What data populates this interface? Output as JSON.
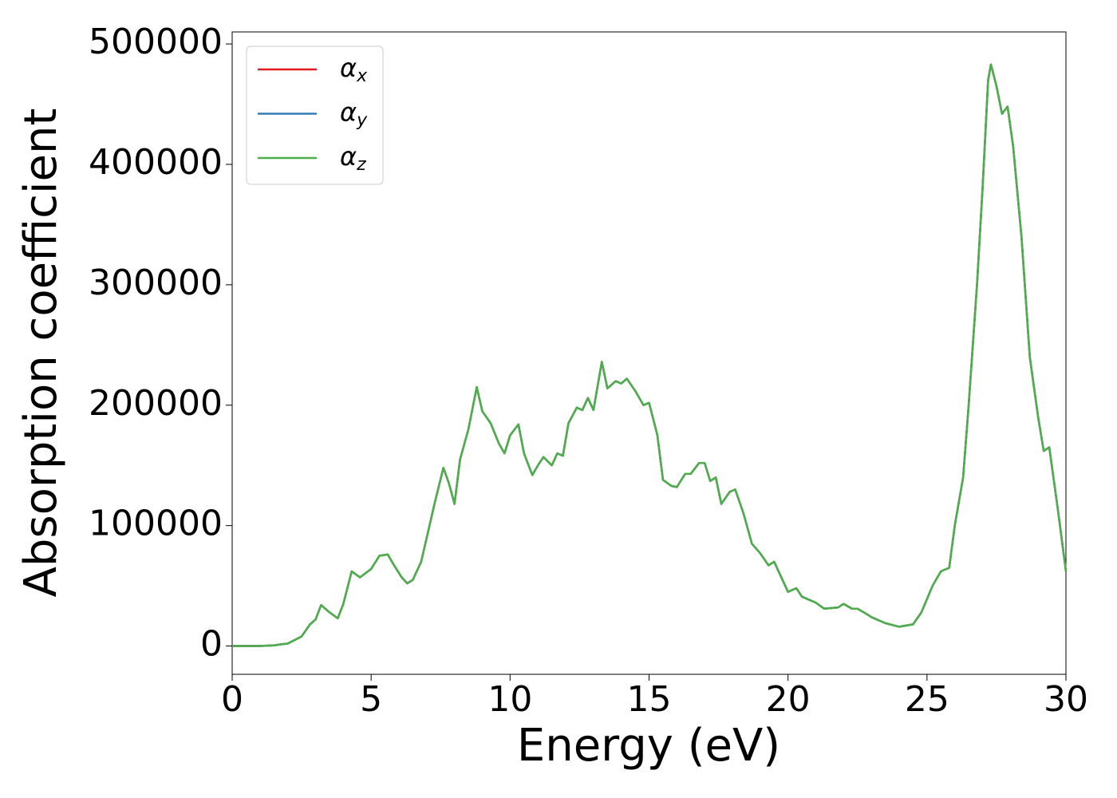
{
  "chart_data": {
    "type": "line",
    "x_label": "Energy (eV)",
    "y_label": "Absorption coefficient",
    "x": [
      0,
      1,
      1.5,
      1.8,
      2.0,
      2.5,
      2.8,
      3.0,
      3.2,
      3.5,
      3.8,
      4.0,
      4.3,
      4.6,
      5.0,
      5.3,
      5.6,
      5.8,
      6.1,
      6.3,
      6.5,
      6.8,
      7.0,
      7.3,
      7.6,
      7.8,
      8.0,
      8.2,
      8.5,
      8.8,
      9.0,
      9.3,
      9.6,
      9.8,
      10.0,
      10.3,
      10.5,
      10.8,
      11.0,
      11.2,
      11.5,
      11.7,
      11.9,
      12.1,
      12.4,
      12.6,
      12.8,
      13.0,
      13.3,
      13.5,
      13.8,
      14.0,
      14.2,
      14.5,
      14.8,
      15.0,
      15.3,
      15.5,
      15.8,
      16.0,
      16.3,
      16.5,
      16.8,
      17.0,
      17.2,
      17.4,
      17.6,
      17.9,
      18.1,
      18.4,
      18.7,
      19.0,
      19.3,
      19.5,
      19.8,
      20.0,
      20.3,
      20.5,
      21.0,
      21.3,
      21.8,
      22.0,
      22.3,
      22.5,
      22.8,
      23.0,
      23.5,
      24.0,
      24.5,
      24.8,
      25.2,
      25.5,
      25.8,
      26.0,
      26.3,
      26.5,
      26.8,
      27.0,
      27.2,
      27.3,
      27.5,
      27.7,
      27.9,
      28.1,
      28.4,
      28.7,
      29.0,
      29.2,
      29.4,
      29.7,
      30.0
    ],
    "series": [
      {
        "name": "αx",
        "color": "#e41a1c",
        "values": [
          0,
          0,
          500,
          1500,
          2000,
          8000,
          18000,
          22000,
          34000,
          28000,
          23000,
          35000,
          62000,
          57000,
          64000,
          75000,
          76000,
          68000,
          57000,
          52000,
          55000,
          70000,
          90000,
          120000,
          148000,
          135000,
          118000,
          155000,
          180000,
          215000,
          195000,
          185000,
          168000,
          160000,
          175000,
          184000,
          160000,
          142000,
          150000,
          157000,
          150000,
          160000,
          158000,
          185000,
          198000,
          196000,
          206000,
          196000,
          236000,
          214000,
          220000,
          218000,
          222000,
          212000,
          200000,
          202000,
          175000,
          138000,
          133000,
          132000,
          143000,
          143000,
          152000,
          152000,
          137000,
          140000,
          118000,
          128000,
          130000,
          110000,
          85000,
          77000,
          67000,
          70000,
          55000,
          45000,
          48000,
          41000,
          36000,
          31000,
          32000,
          35000,
          31000,
          31000,
          27000,
          24000,
          19000,
          16000,
          18000,
          28000,
          50000,
          62000,
          65000,
          100000,
          140000,
          200000,
          300000,
          380000,
          470000,
          483000,
          465000,
          442000,
          448000,
          415000,
          340000,
          240000,
          190000,
          162000,
          165000,
          115000,
          62000
        ]
      },
      {
        "name": "αy",
        "color": "#377eb8",
        "values": [
          0,
          0,
          500,
          1500,
          2000,
          8000,
          18000,
          22000,
          34000,
          28000,
          23000,
          35000,
          62000,
          57000,
          64000,
          75000,
          76000,
          68000,
          57000,
          52000,
          55000,
          70000,
          90000,
          120000,
          148000,
          135000,
          118000,
          155000,
          180000,
          215000,
          195000,
          185000,
          168000,
          160000,
          175000,
          184000,
          160000,
          142000,
          150000,
          157000,
          150000,
          160000,
          158000,
          185000,
          198000,
          196000,
          206000,
          196000,
          236000,
          214000,
          220000,
          218000,
          222000,
          212000,
          200000,
          202000,
          175000,
          138000,
          133000,
          132000,
          143000,
          143000,
          152000,
          152000,
          137000,
          140000,
          118000,
          128000,
          130000,
          110000,
          85000,
          77000,
          67000,
          70000,
          55000,
          45000,
          48000,
          41000,
          36000,
          31000,
          32000,
          35000,
          31000,
          31000,
          27000,
          24000,
          19000,
          16000,
          18000,
          28000,
          50000,
          62000,
          65000,
          100000,
          140000,
          200000,
          300000,
          380000,
          470000,
          483000,
          465000,
          442000,
          448000,
          415000,
          340000,
          240000,
          190000,
          162000,
          165000,
          115000,
          62000
        ]
      },
      {
        "name": "αz",
        "color": "#4daf4a",
        "values": [
          0,
          0,
          500,
          1500,
          2000,
          8000,
          18000,
          22000,
          34000,
          28000,
          23000,
          35000,
          62000,
          57000,
          64000,
          75000,
          76000,
          68000,
          57000,
          52000,
          55000,
          70000,
          90000,
          120000,
          148000,
          135000,
          118000,
          155000,
          180000,
          215000,
          195000,
          185000,
          168000,
          160000,
          175000,
          184000,
          160000,
          142000,
          150000,
          157000,
          150000,
          160000,
          158000,
          185000,
          198000,
          196000,
          206000,
          196000,
          236000,
          214000,
          220000,
          218000,
          222000,
          212000,
          200000,
          202000,
          175000,
          138000,
          133000,
          132000,
          143000,
          143000,
          152000,
          152000,
          137000,
          140000,
          118000,
          128000,
          130000,
          110000,
          85000,
          77000,
          67000,
          70000,
          55000,
          45000,
          48000,
          41000,
          36000,
          31000,
          32000,
          35000,
          31000,
          31000,
          27000,
          24000,
          19000,
          16000,
          18000,
          28000,
          50000,
          62000,
          65000,
          100000,
          140000,
          200000,
          300000,
          380000,
          470000,
          483000,
          465000,
          442000,
          448000,
          415000,
          340000,
          240000,
          190000,
          162000,
          165000,
          115000,
          62000
        ]
      }
    ],
    "xlim": [
      0,
      30
    ],
    "xticks": [
      0,
      5,
      10,
      15,
      20,
      25,
      30
    ],
    "ylim": [
      -23500,
      510000
    ],
    "yticks": [
      0,
      100000,
      200000,
      300000,
      400000,
      500000
    ],
    "grid": false,
    "legend": "upper left"
  }
}
